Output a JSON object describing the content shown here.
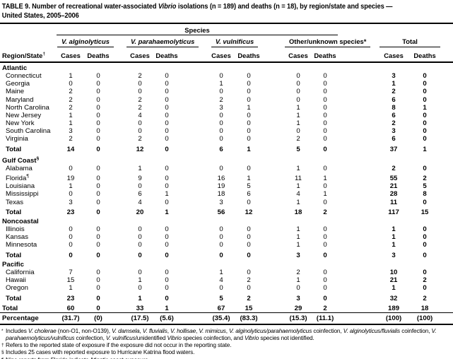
{
  "title": {
    "lines": [
      [
        {
          "t": "TABLE 9. Number of recreational water-associated "
        },
        {
          "t": "Vibrio",
          "i": 1
        },
        {
          "t": " isolations (n = 189) and deaths (n = 18), by region/state and species —"
        }
      ],
      [
        {
          "t": "United States, 2005–2006"
        }
      ]
    ]
  },
  "header": {
    "species_label": "Species",
    "region_state": {
      "text": "Region/State",
      "marker": "†"
    },
    "groups": [
      {
        "label": "V. alginolyticus",
        "italic": true
      },
      {
        "label": "V. parahaemolyticus",
        "italic": true
      },
      {
        "label": "V. vulnificus",
        "italic": true
      },
      {
        "label": "Other/unknown species*",
        "italic": false
      },
      {
        "label": "Total",
        "italic": false
      }
    ],
    "subcols": [
      "Cases",
      "Deaths"
    ]
  },
  "sections": [
    {
      "name": "Atlantic",
      "rows": [
        {
          "state": "Connecticut",
          "v": [
            1,
            0,
            2,
            0,
            0,
            0,
            0,
            0,
            3,
            0
          ]
        },
        {
          "state": "Georgia",
          "v": [
            0,
            0,
            0,
            0,
            1,
            0,
            0,
            0,
            1,
            0
          ]
        },
        {
          "state": "Maine",
          "v": [
            2,
            0,
            0,
            0,
            0,
            0,
            0,
            0,
            2,
            0
          ]
        },
        {
          "state": "Maryland",
          "v": [
            2,
            0,
            2,
            0,
            2,
            0,
            0,
            0,
            6,
            0
          ]
        },
        {
          "state": "North Carolina",
          "v": [
            2,
            0,
            2,
            0,
            3,
            1,
            1,
            0,
            8,
            1
          ]
        },
        {
          "state": "New Jersey",
          "v": [
            1,
            0,
            4,
            0,
            0,
            0,
            1,
            0,
            6,
            0
          ]
        },
        {
          "state": "New York",
          "v": [
            1,
            0,
            0,
            0,
            0,
            0,
            1,
            0,
            2,
            0
          ]
        },
        {
          "state": "South Carolina",
          "v": [
            3,
            0,
            0,
            0,
            0,
            0,
            0,
            0,
            3,
            0
          ]
        },
        {
          "state": "Virginia",
          "v": [
            2,
            0,
            2,
            0,
            0,
            0,
            2,
            0,
            6,
            0
          ]
        }
      ],
      "total": {
        "label": "Total",
        "v": [
          14,
          0,
          12,
          0,
          6,
          1,
          5,
          0,
          37,
          1
        ]
      }
    },
    {
      "name": "Gulf Coast",
      "marker": "§",
      "rows": [
        {
          "state": "Alabama",
          "v": [
            0,
            0,
            1,
            0,
            0,
            0,
            1,
            0,
            2,
            0
          ]
        },
        {
          "state": "Florida",
          "marker": "¶",
          "v": [
            19,
            0,
            9,
            0,
            16,
            1,
            11,
            1,
            55,
            2
          ]
        },
        {
          "state": "Louisiana",
          "v": [
            1,
            0,
            0,
            0,
            19,
            5,
            1,
            0,
            21,
            5
          ]
        },
        {
          "state": "Mississippi",
          "v": [
            0,
            0,
            6,
            1,
            18,
            6,
            4,
            1,
            28,
            8
          ]
        },
        {
          "state": "Texas",
          "v": [
            3,
            0,
            4,
            0,
            3,
            0,
            1,
            0,
            11,
            0
          ]
        }
      ],
      "total": {
        "label": "Total",
        "v": [
          23,
          0,
          20,
          1,
          56,
          12,
          18,
          2,
          117,
          15
        ]
      }
    },
    {
      "name": "Noncoastal",
      "rows": [
        {
          "state": "Illinois",
          "v": [
            0,
            0,
            0,
            0,
            0,
            0,
            1,
            0,
            1,
            0
          ]
        },
        {
          "state": "Kansas",
          "v": [
            0,
            0,
            0,
            0,
            0,
            0,
            1,
            0,
            1,
            0
          ]
        },
        {
          "state": "Minnesota",
          "v": [
            0,
            0,
            0,
            0,
            0,
            0,
            1,
            0,
            1,
            0
          ]
        }
      ],
      "total": {
        "label": "Total",
        "v": [
          0,
          0,
          0,
          0,
          0,
          0,
          3,
          0,
          3,
          0
        ]
      }
    },
    {
      "name": "Pacific",
      "rows": [
        {
          "state": "California",
          "v": [
            7,
            0,
            0,
            0,
            1,
            0,
            2,
            0,
            10,
            0
          ]
        },
        {
          "state": "Hawaii",
          "v": [
            15,
            0,
            1,
            0,
            4,
            2,
            1,
            0,
            21,
            2
          ]
        },
        {
          "state": "Oregon",
          "v": [
            1,
            0,
            0,
            0,
            0,
            0,
            0,
            0,
            1,
            0
          ]
        }
      ],
      "total": {
        "label": "Total",
        "v": [
          23,
          0,
          1,
          0,
          5,
          2,
          3,
          0,
          32,
          2
        ]
      }
    }
  ],
  "grand_total": {
    "label": "Total",
    "v": [
      60,
      0,
      33,
      1,
      67,
      15,
      29,
      2,
      189,
      18
    ]
  },
  "percentage": {
    "label": "Percentage",
    "v": [
      "(31.7)",
      "(0)",
      "(17.5)",
      "(5.6)",
      "(35.4)",
      "(83.3)",
      "(15.3)",
      "(11.1)",
      "(100)",
      "(100)"
    ]
  },
  "footnotes": [
    {
      "marker": "*",
      "segments": [
        {
          "t": "Includes "
        },
        {
          "t": "V. cholerae",
          "i": 1
        },
        {
          "t": " (non-O1, non-O139), "
        },
        {
          "t": "V. damsela",
          "i": 1
        },
        {
          "t": ", "
        },
        {
          "t": "V. fluvialis",
          "i": 1
        },
        {
          "t": ", "
        },
        {
          "t": "V. hollisae",
          "i": 1
        },
        {
          "t": ", "
        },
        {
          "t": "V. mimicus",
          "i": 1
        },
        {
          "t": ", "
        },
        {
          "t": "V. alginolyticus/parahaemolyticus",
          "i": 1
        },
        {
          "t": " coinfection, "
        },
        {
          "t": "V. alginolyticus/fluvialis",
          "i": 1
        },
        {
          "t": " coinfection, "
        },
        {
          "t": "V. parahaemolyticus/vulnificus",
          "i": 1
        },
        {
          "t": " coinfection, "
        },
        {
          "t": "V. vulnificus",
          "i": 1
        },
        {
          "t": "/unidentified "
        },
        {
          "t": "Vibrio",
          "i": 1
        },
        {
          "t": " species coinfection, and "
        },
        {
          "t": "Vibrio",
          "i": 1
        },
        {
          "t": " species not identified."
        }
      ]
    },
    {
      "marker": "†",
      "segments": [
        {
          "t": "Refers to the reported state of exposure if the exposure did not occur in the reporting state."
        }
      ]
    },
    {
      "marker": "§",
      "segments": [
        {
          "t": "Includes 25 cases with reported exposure to Hurricane Katrina flood waters."
        }
      ]
    },
    {
      "marker": "¶",
      "segments": [
        {
          "t": "Nine reports from Florida indicate Atlantic coast exposure."
        }
      ]
    }
  ]
}
